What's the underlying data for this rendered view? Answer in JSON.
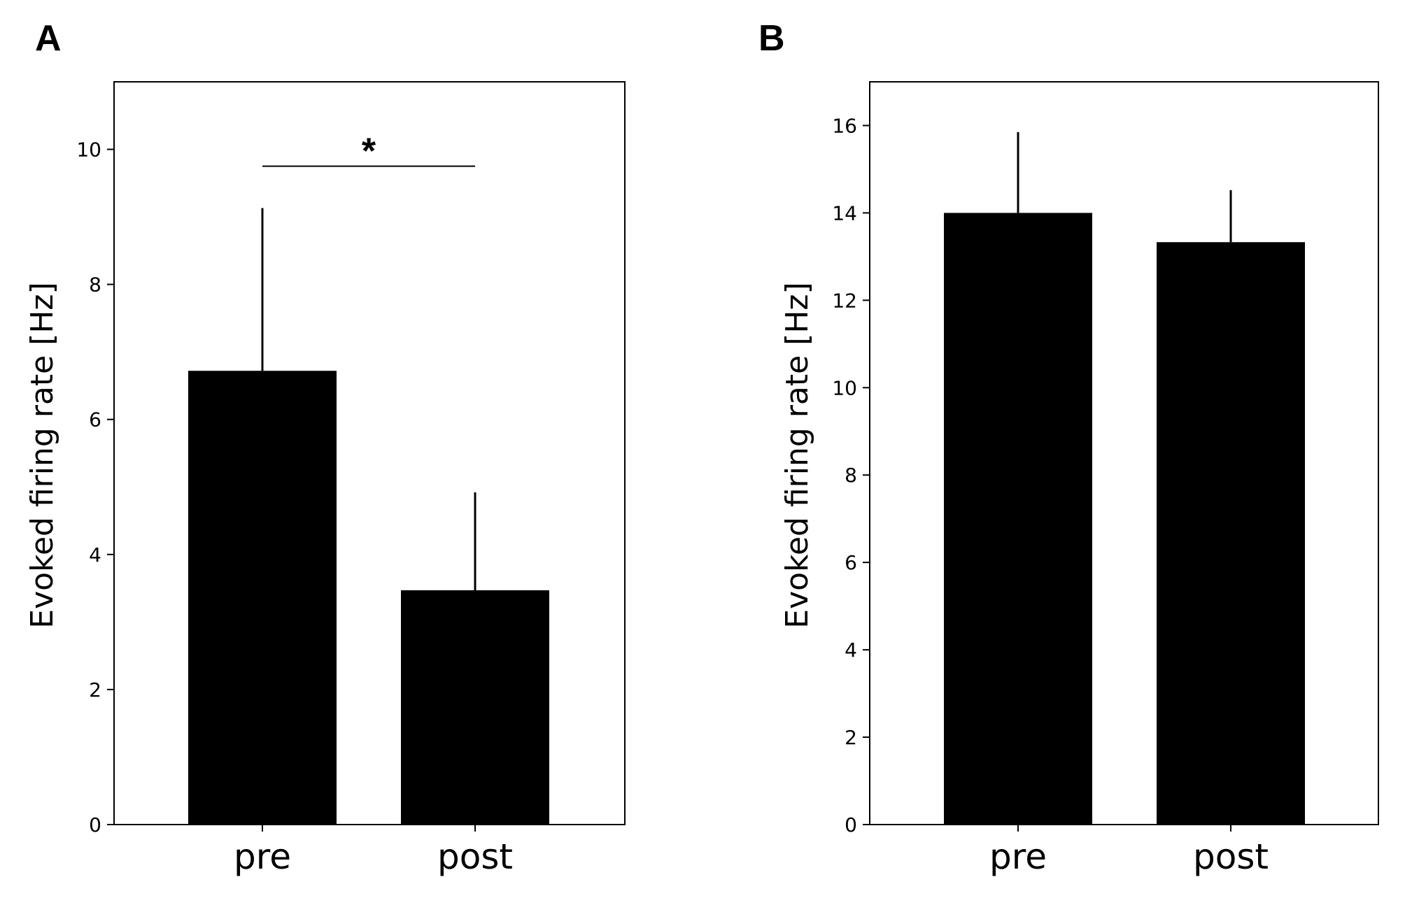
{
  "chart_data": [
    {
      "panel": "A",
      "type": "bar",
      "categories": [
        "pre",
        "post"
      ],
      "values": [
        6.72,
        3.47
      ],
      "error_upper": [
        9.13,
        4.92
      ],
      "ylabel": "Evoked firing rate [Hz]",
      "xlabel": "",
      "ylim": [
        0,
        11
      ],
      "yticks": [
        0,
        2,
        4,
        6,
        8,
        10
      ],
      "bar_color": "#000000",
      "significance": {
        "label": "*",
        "between": [
          "pre",
          "post"
        ],
        "y": 9.75
      }
    },
    {
      "panel": "B",
      "type": "bar",
      "categories": [
        "pre",
        "post"
      ],
      "values": [
        14.0,
        13.33
      ],
      "error_upper": [
        15.85,
        14.52
      ],
      "ylabel": "Evoked firing rate [Hz]",
      "xlabel": "",
      "ylim": [
        0,
        17
      ],
      "yticks": [
        0,
        2,
        4,
        6,
        8,
        10,
        12,
        14,
        16
      ],
      "bar_color": "#000000"
    }
  ]
}
